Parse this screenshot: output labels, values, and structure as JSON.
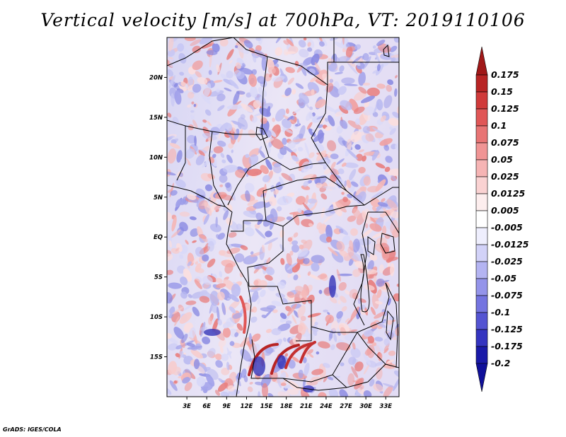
{
  "title": "Vertical velocity [m/s] at 700hPa, VT: 2019110106",
  "credit": "GrADS: IGES/COLA",
  "map": {
    "lat_labels": [
      "20N",
      "15N",
      "10N",
      "5N",
      "EQ",
      "5S",
      "10S",
      "15S"
    ],
    "lat_values": [
      20,
      15,
      10,
      5,
      0,
      -5,
      -10,
      -15
    ],
    "lon_labels": [
      "3E",
      "6E",
      "9E",
      "12E",
      "15E",
      "18E",
      "21E",
      "24E",
      "27E",
      "30E",
      "33E"
    ],
    "lon_values": [
      3,
      6,
      9,
      12,
      15,
      18,
      21,
      24,
      27,
      30,
      33
    ],
    "lon_range": [
      0,
      35
    ],
    "lat_range": [
      -20,
      25
    ]
  },
  "colorbar": {
    "labels": [
      "0.175",
      "0.15",
      "0.125",
      "0.1",
      "0.075",
      "0.05",
      "0.025",
      "0.0125",
      "0.005",
      "-0.005",
      "-0.0125",
      "-0.025",
      "-0.05",
      "-0.075",
      "-0.1",
      "-0.125",
      "-0.175",
      "-0.2"
    ],
    "colors": [
      "#a01818",
      "#b82424",
      "#d03a3a",
      "#e05656",
      "#e87474",
      "#f09494",
      "#f6b4b4",
      "#fad2d2",
      "#fdeeee",
      "#ffffff",
      "#eeeefd",
      "#d2d2f8",
      "#b4b4f2",
      "#9494ea",
      "#7474e0",
      "#5454d2",
      "#3434c0",
      "#1a1aa8",
      "#10109a"
    ]
  }
}
